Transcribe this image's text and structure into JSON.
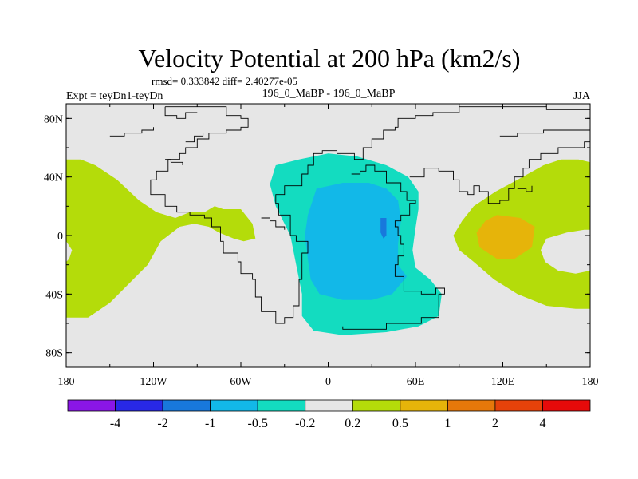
{
  "chart_data": {
    "type": "contour-map",
    "title": "Velocity Potential at 200 hPa (km2/s)",
    "stats": "rmsd= 0.333842 diff= 2.40277e-05",
    "left_label": "Expt = teyDn1-teyDn",
    "center_label": "196_0_MaBP - 196_0_MaBP",
    "right_label": "JJA",
    "x_ticks": [
      {
        "lon": -180,
        "label": "180"
      },
      {
        "lon": -120,
        "label": "120W"
      },
      {
        "lon": -60,
        "label": "60W"
      },
      {
        "lon": 0,
        "label": "0"
      },
      {
        "lon": 60,
        "label": "60E"
      },
      {
        "lon": 120,
        "label": "120E"
      },
      {
        "lon": 180,
        "label": "180"
      }
    ],
    "y_ticks": [
      {
        "lat": 80,
        "label": "80N"
      },
      {
        "lat": 40,
        "label": "40N"
      },
      {
        "lat": 0,
        "label": "0"
      },
      {
        "lat": -40,
        "label": "40S"
      },
      {
        "lat": -80,
        "label": "80S"
      }
    ],
    "xlim": [
      -180,
      180
    ],
    "ylim": [
      -90,
      90
    ],
    "colorbar": {
      "colors": [
        "#8a16e6",
        "#2828e6",
        "#1878dc",
        "#12b8e8",
        "#13dcc0",
        "#e6e6e6",
        "#b4dc0a",
        "#e6b40a",
        "#e6780a",
        "#e6420a",
        "#e60a0a"
      ],
      "labels": [
        "-4",
        "-2",
        "-1",
        "-0.5",
        "-0.2",
        "0.2",
        "0.5",
        "1",
        "2",
        "4"
      ]
    },
    "background_color": "#e6e6e6",
    "regions": [
      {
        "level": "0.2 to 0.5",
        "color": "#b4dc0a",
        "points": [
          [
            -180,
            52
          ],
          [
            -170,
            52
          ],
          [
            -160,
            48
          ],
          [
            -145,
            38
          ],
          [
            -130,
            24
          ],
          [
            -118,
            16
          ],
          [
            -105,
            12
          ],
          [
            -95,
            16
          ],
          [
            -85,
            16
          ],
          [
            -78,
            20
          ],
          [
            -72,
            18
          ],
          [
            -60,
            18
          ],
          [
            -52,
            8
          ],
          [
            -50,
            -2
          ],
          [
            -58,
            -4
          ],
          [
            -65,
            -2
          ],
          [
            -75,
            2
          ],
          [
            -82,
            6
          ],
          [
            -92,
            8
          ],
          [
            -102,
            6
          ],
          [
            -115,
            -4
          ],
          [
            -124,
            -20
          ],
          [
            -140,
            -36
          ],
          [
            -150,
            -46
          ],
          [
            -165,
            -56
          ],
          [
            -180,
            -56
          ]
        ]
      },
      {
        "level": "0.2 to 0.5",
        "color": "#b4dc0a",
        "points": [
          [
            180,
            50
          ],
          [
            172,
            52
          ],
          [
            160,
            52
          ],
          [
            148,
            48
          ],
          [
            130,
            38
          ],
          [
            115,
            30
          ],
          [
            100,
            20
          ],
          [
            92,
            10
          ],
          [
            86,
            0
          ],
          [
            90,
            -10
          ],
          [
            100,
            -18
          ],
          [
            114,
            -30
          ],
          [
            130,
            -40
          ],
          [
            150,
            -48
          ],
          [
            170,
            -50
          ],
          [
            180,
            -50
          ]
        ]
      },
      {
        "level": "-0.2 to -0.5",
        "color": "#13dcc0",
        "points": [
          [
            -36,
            48
          ],
          [
            -20,
            52
          ],
          [
            0,
            56
          ],
          [
            20,
            54
          ],
          [
            40,
            48
          ],
          [
            55,
            40
          ],
          [
            62,
            30
          ],
          [
            62,
            18
          ],
          [
            60,
            5
          ],
          [
            58,
            -10
          ],
          [
            60,
            -22
          ],
          [
            70,
            -30
          ],
          [
            78,
            -40
          ],
          [
            76,
            -55
          ],
          [
            62,
            -62
          ],
          [
            40,
            -66
          ],
          [
            10,
            -68
          ],
          [
            -10,
            -65
          ],
          [
            -18,
            -55
          ],
          [
            -18,
            -40
          ],
          [
            -22,
            -20
          ],
          [
            -26,
            0
          ],
          [
            -36,
            20
          ],
          [
            -40,
            35
          ]
        ]
      },
      {
        "level": "-0.5 to -1",
        "color": "#12b8e8",
        "points": [
          [
            -8,
            32
          ],
          [
            10,
            36
          ],
          [
            28,
            36
          ],
          [
            40,
            32
          ],
          [
            48,
            24
          ],
          [
            50,
            10
          ],
          [
            48,
            -6
          ],
          [
            48,
            -20
          ],
          [
            54,
            -28
          ],
          [
            44,
            -40
          ],
          [
            30,
            -44
          ],
          [
            10,
            -44
          ],
          [
            -6,
            -40
          ],
          [
            -12,
            -30
          ],
          [
            -14,
            -16
          ],
          [
            -16,
            0
          ],
          [
            -14,
            14
          ]
        ]
      },
      {
        "level": "-1 to -2",
        "color": "#1878dc",
        "points": [
          [
            36,
            12
          ],
          [
            40,
            12
          ],
          [
            40,
            0
          ],
          [
            38,
            -2
          ],
          [
            36,
            2
          ]
        ]
      },
      {
        "level": "0.5 to 1",
        "color": "#e6b40a",
        "points": [
          [
            116,
            14
          ],
          [
            132,
            12
          ],
          [
            142,
            6
          ],
          [
            140,
            -8
          ],
          [
            128,
            -16
          ],
          [
            116,
            -16
          ],
          [
            104,
            -8
          ],
          [
            102,
            2
          ],
          [
            108,
            10
          ]
        ]
      },
      {
        "level": "-0.2 to 0.2",
        "color": "#e6e6e6",
        "points": [
          [
            150,
            -2
          ],
          [
            164,
            2
          ],
          [
            176,
            4
          ],
          [
            180,
            4
          ],
          [
            180,
            -24
          ],
          [
            170,
            -26
          ],
          [
            158,
            -24
          ],
          [
            149,
            -18
          ],
          [
            146,
            -10
          ]
        ]
      },
      {
        "level": "-0.2 to 0.2",
        "color": "#e6e6e6",
        "points": [
          [
            -180,
            -4
          ],
          [
            -176,
            -10
          ],
          [
            -178,
            -16
          ],
          [
            -180,
            -18
          ]
        ]
      }
    ],
    "coastlines": [
      [
        [
          -112,
          88
        ],
        [
          -90,
          88
        ],
        [
          -72,
          88
        ],
        [
          -70,
          82
        ],
        [
          -60,
          80
        ],
        [
          -55,
          74
        ],
        [
          -60,
          72
        ],
        [
          -70,
          70
        ],
        [
          -82,
          66
        ],
        [
          -90,
          60
        ],
        [
          -98,
          56
        ],
        [
          -102,
          52
        ],
        [
          -110,
          44
        ],
        [
          -118,
          38
        ],
        [
          -122,
          28
        ],
        [
          -112,
          20
        ],
        [
          -104,
          16
        ],
        [
          -95,
          14
        ],
        [
          -85,
          12
        ],
        [
          -80,
          6
        ],
        [
          -74,
          0
        ],
        [
          -74,
          -4
        ],
        [
          -72,
          -12
        ],
        [
          -62,
          -18
        ],
        [
          -60,
          -26
        ],
        [
          -52,
          -30
        ],
        [
          -50,
          -42
        ],
        [
          -46,
          -52
        ],
        [
          -36,
          -60
        ],
        [
          -30,
          -56
        ],
        [
          -24,
          -48
        ],
        [
          -20,
          -30
        ],
        [
          -18,
          -12
        ],
        [
          -14,
          -4
        ],
        [
          -22,
          0
        ],
        [
          -26,
          14
        ],
        [
          -34,
          22
        ],
        [
          -36,
          28
        ],
        [
          -30,
          34
        ],
        [
          -18,
          42
        ],
        [
          -14,
          48
        ],
        [
          -10,
          56
        ],
        [
          -4,
          58
        ],
        [
          6,
          56
        ],
        [
          18,
          52
        ],
        [
          24,
          60
        ],
        [
          30,
          66
        ],
        [
          38,
          72
        ],
        [
          46,
          74
        ],
        [
          48,
          80
        ],
        [
          60,
          82
        ],
        [
          72,
          84
        ],
        [
          90,
          88
        ],
        [
          120,
          88
        ],
        [
          150,
          86
        ],
        [
          180,
          84
        ]
      ],
      [
        [
          -112,
          88
        ],
        [
          -112,
          82
        ],
        [
          -104,
          80
        ],
        [
          -98,
          84
        ],
        [
          -90,
          84
        ]
      ],
      [
        [
          16,
          42
        ],
        [
          22,
          44
        ],
        [
          26,
          48
        ],
        [
          32,
          44
        ],
        [
          40,
          36
        ],
        [
          50,
          30
        ],
        [
          54,
          24
        ],
        [
          60,
          22
        ],
        [
          56,
          14
        ],
        [
          50,
          10
        ],
        [
          46,
          6
        ],
        [
          48,
          0
        ],
        [
          50,
          -6
        ],
        [
          52,
          -14
        ],
        [
          48,
          -20
        ],
        [
          46,
          -28
        ],
        [
          52,
          -38
        ],
        [
          64,
          -40
        ],
        [
          74,
          -36
        ],
        [
          80,
          -40
        ],
        [
          76,
          -56
        ],
        [
          64,
          -60
        ],
        [
          40,
          -64
        ],
        [
          22,
          -64
        ],
        [
          10,
          -62
        ]
      ],
      [
        [
          56,
          40
        ],
        [
          66,
          46
        ],
        [
          76,
          44
        ],
        [
          86,
          38
        ],
        [
          90,
          30
        ],
        [
          96,
          28
        ],
        [
          100,
          34
        ],
        [
          104,
          30
        ],
        [
          110,
          22
        ],
        [
          118,
          24
        ],
        [
          124,
          32
        ],
        [
          128,
          40
        ],
        [
          134,
          46
        ],
        [
          138,
          52
        ],
        [
          146,
          56
        ],
        [
          158,
          60
        ],
        [
          176,
          64
        ],
        [
          180,
          64
        ]
      ],
      [
        [
          118,
          68
        ],
        [
          130,
          70
        ],
        [
          148,
          72
        ],
        [
          168,
          72
        ],
        [
          180,
          70
        ]
      ],
      [
        [
          -150,
          68
        ],
        [
          -140,
          70
        ],
        [
          -128,
          72
        ],
        [
          -120,
          74
        ]
      ],
      [
        [
          -98,
          64
        ],
        [
          -92,
          68
        ],
        [
          -86,
          70
        ]
      ],
      [
        [
          -46,
          12
        ],
        [
          -40,
          10
        ],
        [
          -36,
          6
        ],
        [
          -30,
          4
        ]
      ],
      [
        [
          -112,
          52
        ],
        [
          -108,
          50
        ],
        [
          -100,
          48
        ]
      ],
      [
        [
          130,
          32
        ],
        [
          136,
          30
        ],
        [
          140,
          34
        ]
      ]
    ]
  }
}
